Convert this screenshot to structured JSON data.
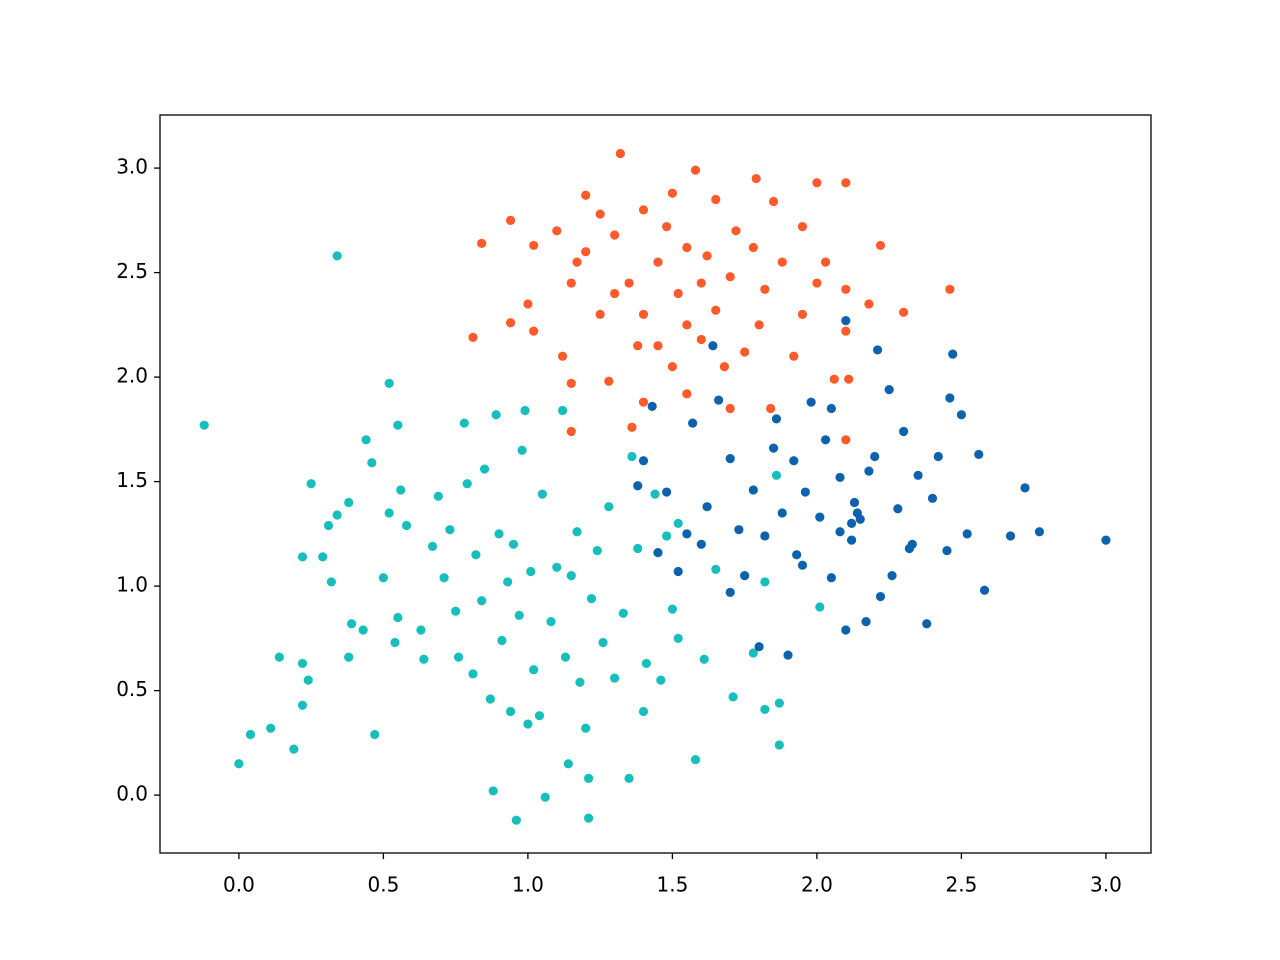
{
  "chart_data": {
    "type": "scatter",
    "xlim": [
      -0.273,
      3.156
    ],
    "ylim": [
      -0.277,
      3.254
    ],
    "xticks": [
      {
        "value": 0,
        "label": "0.0"
      },
      0.5,
      {
        "value": 1,
        "label": "1.0"
      },
      1.5,
      {
        "value": 2,
        "label": "2.0"
      },
      2.5,
      {
        "value": 3,
        "label": "3.0"
      }
    ],
    "yticks": [
      {
        "value": 0,
        "label": "0.0"
      },
      0.5,
      {
        "value": 1,
        "label": "1.0"
      },
      1.5,
      {
        "value": 2,
        "label": "2.0"
      },
      2.5,
      {
        "value": 3,
        "label": "3.0"
      }
    ],
    "grid": false,
    "series": [
      {
        "color": "#17bebb",
        "x": [
          -0.12,
          0.34,
          0.0,
          0.04,
          0.11,
          0.19,
          0.14,
          0.22,
          0.22,
          0.24,
          0.22,
          0.25,
          0.29,
          0.31,
          0.32,
          0.34,
          0.38,
          0.38,
          0.39,
          0.43,
          0.44,
          0.46,
          0.47,
          0.52,
          0.55,
          0.52,
          0.5,
          0.54,
          0.55,
          0.56,
          0.58,
          0.63,
          0.64,
          0.67,
          0.69,
          0.71,
          0.73,
          0.75,
          0.76,
          0.78,
          0.79,
          0.81,
          0.82,
          0.84,
          0.85,
          0.87,
          0.88,
          0.89,
          0.9,
          0.91,
          0.93,
          0.94,
          0.95,
          0.96,
          0.97,
          0.98,
          0.99,
          1.0,
          1.01,
          1.02,
          1.04,
          1.05,
          1.06,
          1.08,
          1.1,
          1.12,
          1.13,
          1.14,
          1.15,
          1.17,
          1.18,
          1.2,
          1.21,
          1.21,
          1.22,
          1.24,
          1.26,
          1.28,
          1.3,
          1.33,
          1.35,
          1.36,
          1.38,
          1.4,
          1.41,
          1.44,
          1.46,
          1.48,
          1.5,
          1.52,
          1.58,
          1.61,
          1.65,
          1.71,
          1.78,
          1.82,
          1.87,
          1.87,
          1.82,
          2.01,
          1.86,
          1.52
        ],
        "values": [
          1.77,
          2.58,
          0.15,
          0.29,
          0.32,
          0.22,
          0.66,
          0.63,
          0.43,
          0.55,
          1.14,
          1.49,
          1.14,
          1.29,
          1.02,
          1.34,
          1.4,
          0.66,
          0.82,
          0.79,
          1.7,
          1.59,
          0.29,
          1.97,
          1.77,
          1.35,
          1.04,
          0.73,
          0.85,
          1.46,
          1.29,
          0.79,
          0.65,
          1.19,
          1.43,
          1.04,
          1.27,
          0.88,
          0.66,
          1.78,
          1.49,
          0.58,
          1.15,
          0.93,
          1.56,
          0.46,
          0.02,
          1.82,
          1.25,
          0.74,
          1.02,
          0.4,
          1.2,
          -0.12,
          0.86,
          1.65,
          1.84,
          0.34,
          1.07,
          0.6,
          0.38,
          1.44,
          -0.01,
          0.83,
          1.09,
          1.84,
          0.66,
          0.15,
          1.05,
          1.26,
          0.54,
          0.32,
          -0.11,
          0.08,
          0.94,
          1.17,
          0.73,
          1.38,
          0.56,
          0.87,
          0.08,
          1.62,
          1.18,
          0.4,
          0.63,
          1.44,
          0.55,
          1.24,
          0.89,
          0.75,
          0.17,
          0.65,
          1.08,
          0.47,
          0.68,
          0.41,
          0.24,
          0.44,
          1.02,
          0.9,
          1.53,
          1.3
        ]
      },
      {
        "color": "#0d62ad",
        "x": [
          3.0,
          2.77,
          2.72,
          2.67,
          2.58,
          2.56,
          2.47,
          2.5,
          2.46,
          2.38,
          2.35,
          2.32,
          2.28,
          2.25,
          2.21,
          2.2,
          2.17,
          2.15,
          2.13,
          2.12,
          2.1,
          2.1,
          2.08,
          2.05,
          2.03,
          2.01,
          1.98,
          1.96,
          1.93,
          1.9,
          1.88,
          1.85,
          1.82,
          1.8,
          1.78,
          1.75,
          1.73,
          1.7,
          1.7,
          1.66,
          1.64,
          1.62,
          1.6,
          1.57,
          1.55,
          1.52,
          1.48,
          1.45,
          1.43,
          1.4,
          1.38,
          2.4,
          2.45,
          2.42,
          2.3,
          2.18,
          2.12,
          2.14,
          2.08,
          1.95,
          2.22,
          2.26,
          1.92,
          2.05,
          1.86,
          2.33,
          2.52
        ],
        "values": [
          1.22,
          1.26,
          1.47,
          1.24,
          0.98,
          1.63,
          2.11,
          1.82,
          1.9,
          0.82,
          1.53,
          1.18,
          1.37,
          1.94,
          2.13,
          1.62,
          0.83,
          1.32,
          1.4,
          1.22,
          2.27,
          0.79,
          1.52,
          1.04,
          1.7,
          1.33,
          1.88,
          1.45,
          1.15,
          0.67,
          1.35,
          1.66,
          1.24,
          0.71,
          1.46,
          1.05,
          1.27,
          0.97,
          1.61,
          1.89,
          2.15,
          1.38,
          1.2,
          1.78,
          1.25,
          1.07,
          1.45,
          1.16,
          1.86,
          1.6,
          1.48,
          1.42,
          1.17,
          1.62,
          1.74,
          1.55,
          1.3,
          1.35,
          1.26,
          1.1,
          0.95,
          1.05,
          1.6,
          1.85,
          1.8,
          1.2,
          1.25
        ]
      },
      {
        "color": "#fe5a2a",
        "x": [
          1.32,
          1.58,
          1.79,
          2.0,
          2.1,
          1.2,
          1.5,
          1.65,
          1.85,
          0.94,
          1.25,
          1.4,
          2.22,
          0.84,
          1.02,
          1.1,
          1.3,
          1.55,
          1.72,
          1.95,
          1.17,
          1.45,
          1.62,
          1.88,
          2.03,
          2.46,
          1.0,
          1.15,
          1.35,
          1.52,
          1.7,
          1.82,
          2.1,
          2.3,
          0.81,
          0.94,
          1.02,
          1.12,
          1.25,
          1.4,
          1.55,
          1.65,
          1.8,
          1.95,
          2.1,
          1.15,
          1.28,
          1.38,
          1.5,
          1.6,
          1.75,
          1.92,
          2.06,
          2.11,
          1.4,
          1.55,
          1.7,
          1.84,
          1.15,
          1.36,
          2.1,
          1.2,
          1.48,
          1.78,
          1.6,
          1.45,
          1.68,
          1.3,
          2.0,
          2.18
        ],
        "values": [
          3.07,
          2.99,
          2.95,
          2.93,
          2.93,
          2.87,
          2.88,
          2.85,
          2.84,
          2.75,
          2.78,
          2.8,
          2.63,
          2.64,
          2.63,
          2.7,
          2.68,
          2.62,
          2.7,
          2.72,
          2.55,
          2.55,
          2.58,
          2.55,
          2.55,
          2.42,
          2.35,
          2.45,
          2.45,
          2.4,
          2.48,
          2.42,
          2.42,
          2.31,
          2.19,
          2.26,
          2.22,
          2.1,
          2.3,
          2.3,
          2.25,
          2.32,
          2.25,
          2.3,
          2.22,
          1.97,
          1.98,
          2.15,
          2.05,
          2.18,
          2.12,
          2.1,
          1.99,
          1.99,
          1.88,
          1.92,
          1.85,
          1.85,
          1.74,
          1.76,
          1.7,
          2.6,
          2.72,
          2.62,
          2.45,
          2.15,
          2.05,
          2.4,
          2.45,
          2.35
        ]
      }
    ]
  }
}
